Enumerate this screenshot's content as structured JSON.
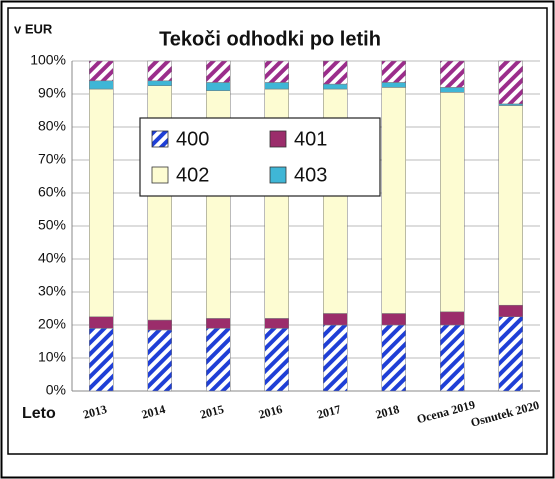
{
  "chart_data": {
    "type": "stacked_bar",
    "title": "Tekoči odhodki po letih",
    "y_label": "v EUR",
    "x_label": "Leto",
    "categories": [
      "2013",
      "2014",
      "2015",
      "2016",
      "2017",
      "2018",
      "Ocena 2019",
      "Osnutek 2020"
    ],
    "series": [
      {
        "name": "400",
        "color": "#1f3fd6",
        "hatched": true,
        "values": [
          19,
          18.5,
          19,
          19,
          20,
          20,
          20,
          22.5
        ]
      },
      {
        "name": "401",
        "color": "#9b2d6b",
        "hatched": false,
        "values": [
          3.5,
          3,
          3,
          3,
          3.5,
          3.5,
          4,
          3.5
        ]
      },
      {
        "name": "402",
        "color": "#fdfcd2",
        "hatched": false,
        "values": [
          69,
          71,
          69,
          69.5,
          68,
          68.5,
          66.5,
          60.5
        ]
      },
      {
        "name": "403",
        "color": "#3fb6d6",
        "hatched": false,
        "values": [
          2.5,
          1.5,
          2.5,
          2,
          1.5,
          1.5,
          1.5,
          0.5
        ]
      },
      {
        "color": "#9b2d8b",
        "hatched": true,
        "values": [
          6,
          6,
          6.5,
          6.5,
          7,
          6.5,
          8,
          13
        ]
      }
    ],
    "ylim": [
      0,
      100
    ],
    "yticks": [
      {
        "value": 0,
        "label": "0%"
      },
      {
        "value": 10,
        "label": "10%"
      },
      {
        "value": 20,
        "label": "20%"
      },
      {
        "value": 30,
        "label": "30%"
      },
      {
        "value": 40,
        "label": "40%"
      },
      {
        "value": 50,
        "label": "50%"
      },
      {
        "value": 60,
        "label": "60%"
      },
      {
        "value": 70,
        "label": "70%"
      },
      {
        "value": 80,
        "label": "80%"
      },
      {
        "value": 90,
        "label": "90%"
      },
      {
        "value": 100,
        "label": "100%"
      }
    ],
    "grid": true
  }
}
